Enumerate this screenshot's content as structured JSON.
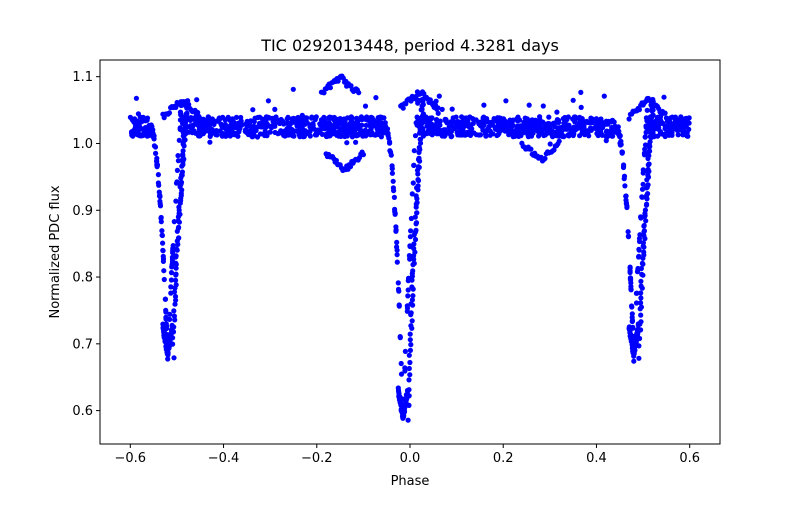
{
  "chart_data": {
    "type": "scatter",
    "title": "TIC 0292013448, period 4.3281 days",
    "xlabel": "Phase",
    "ylabel": "Normalized PDC flux",
    "xlim": [
      -0.665,
      0.665
    ],
    "ylim": [
      0.55,
      1.125
    ],
    "xticks": [
      -0.6,
      -0.4,
      -0.2,
      0.0,
      0.2,
      0.4,
      0.6
    ],
    "xtick_labels": [
      "−0.6",
      "−0.4",
      "−0.2",
      "0.0",
      "0.2",
      "0.4",
      "0.6"
    ],
    "yticks": [
      0.6,
      0.7,
      0.8,
      0.9,
      1.0,
      1.1
    ],
    "ytick_labels": [
      "0.6",
      "0.7",
      "0.8",
      "0.9",
      "1.0",
      "1.1"
    ],
    "grid": false,
    "legend": "none",
    "marker_color": "#0000ff",
    "phase_range": [
      -0.6,
      0.6
    ],
    "baseline_flux": 1.025,
    "eclipses": [
      {
        "phase": -0.52,
        "min_flux": 0.68
      },
      {
        "phase": -0.015,
        "min_flux": 0.585
      },
      {
        "phase": 0.48,
        "min_flux": 0.68
      }
    ],
    "features": [
      {
        "phase": -0.49,
        "flux": 1.065
      },
      {
        "phase": 0.02,
        "flux": 1.078
      },
      {
        "phase": 0.51,
        "flux": 1.065
      },
      {
        "phase": -0.15,
        "flux": 1.1
      },
      {
        "phase": -0.14,
        "flux": 0.96
      },
      {
        "phase": 0.28,
        "flux": 0.975
      }
    ]
  }
}
